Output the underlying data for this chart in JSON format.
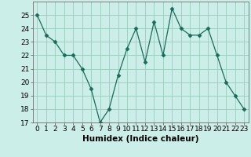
{
  "x": [
    0,
    1,
    2,
    3,
    4,
    5,
    6,
    7,
    8,
    9,
    10,
    11,
    12,
    13,
    14,
    15,
    16,
    17,
    18,
    19,
    20,
    21,
    22,
    23
  ],
  "y": [
    25,
    23.5,
    23,
    22,
    22,
    21,
    19.5,
    17,
    18,
    20.5,
    22.5,
    24,
    21.5,
    24.5,
    22,
    25.5,
    24,
    23.5,
    23.5,
    24,
    22,
    20,
    19,
    18
  ],
  "line_color": "#1a6b5a",
  "marker": "D",
  "marker_size": 2.5,
  "xlabel": "Humidex (Indice chaleur)",
  "ylim": [
    17,
    26
  ],
  "xlim": [
    -0.5,
    23.5
  ],
  "yticks": [
    17,
    18,
    19,
    20,
    21,
    22,
    23,
    24,
    25
  ],
  "xticks": [
    0,
    1,
    2,
    3,
    4,
    5,
    6,
    7,
    8,
    9,
    10,
    11,
    12,
    13,
    14,
    15,
    16,
    17,
    18,
    19,
    20,
    21,
    22,
    23
  ],
  "bg_color": "#cceee8",
  "grid_color": "#99ccbb",
  "tick_fontsize": 6.5,
  "xlabel_fontsize": 7.5
}
